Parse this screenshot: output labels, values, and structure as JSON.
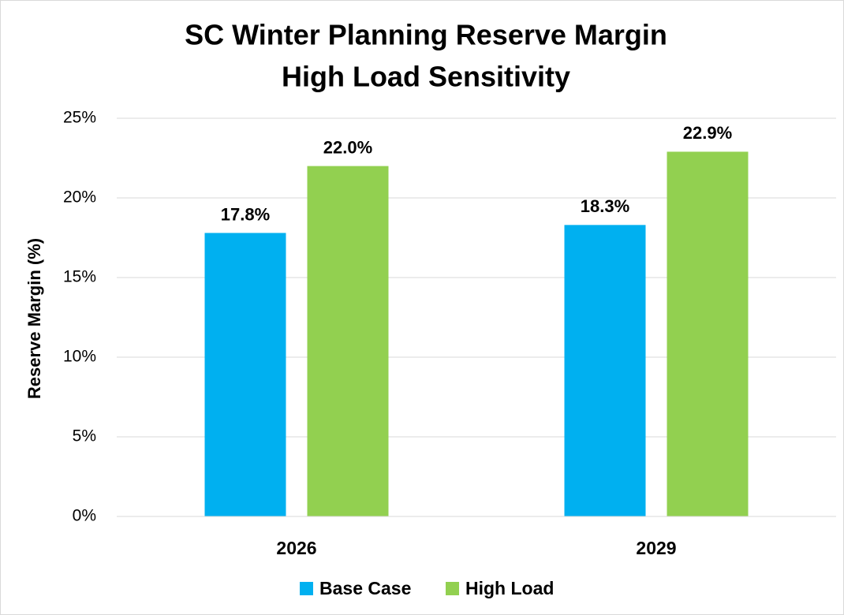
{
  "chart_data": {
    "type": "bar",
    "title": [
      "SC Winter Planning Reserve Margin",
      "High Load Sensitivity"
    ],
    "y_label": "Reserve Margin (%)",
    "categories": [
      "2026",
      "2029"
    ],
    "series": [
      {
        "name": "Base Case",
        "color": "#00b0f0",
        "values": [
          17.8,
          18.3
        ],
        "value_labels": [
          "17.8%",
          "18.3%"
        ]
      },
      {
        "name": "High Load",
        "color": "#92d050",
        "values": [
          22.0,
          22.9
        ],
        "value_labels": [
          "22.0%",
          "22.9%"
        ]
      }
    ],
    "ylim": [
      0,
      25
    ],
    "yticks": [
      {
        "value": 0,
        "label": "0%"
      },
      {
        "value": 5,
        "label": "5%"
      },
      {
        "value": 10,
        "label": "10%"
      },
      {
        "value": 15,
        "label": "15%"
      },
      {
        "value": 20,
        "label": "20%"
      },
      {
        "value": 25,
        "label": "25%"
      }
    ],
    "grid": true,
    "legend": "bottom"
  }
}
